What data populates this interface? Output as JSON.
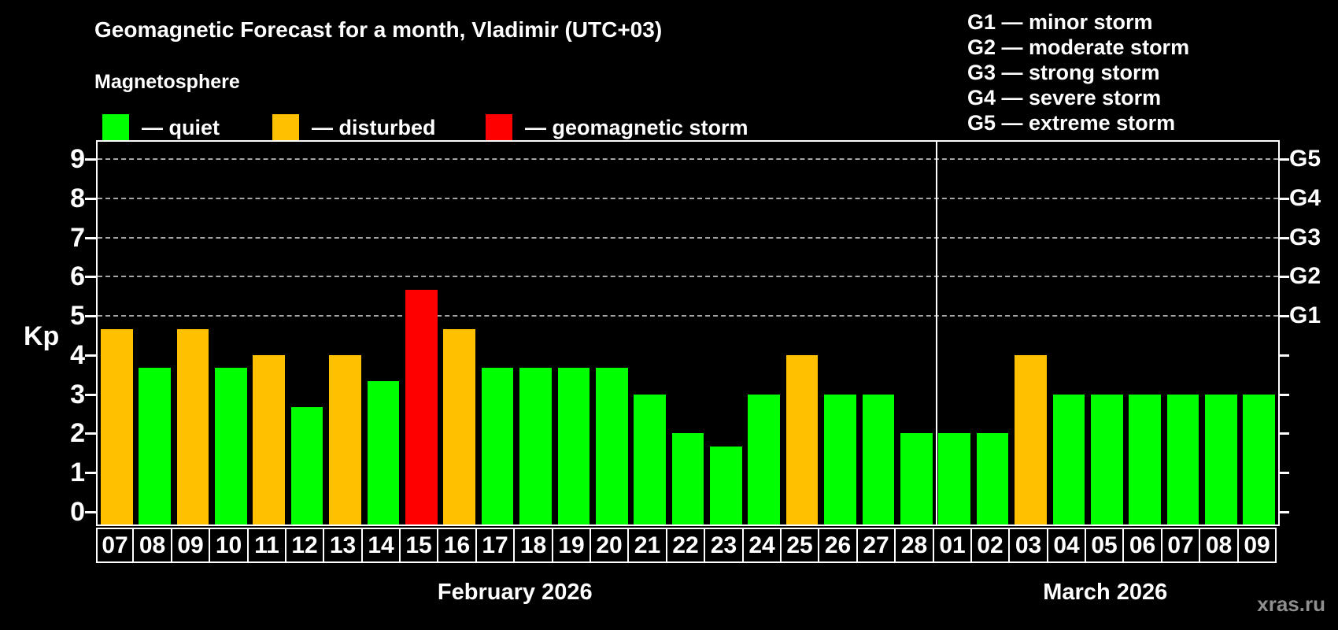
{
  "header": {
    "title": "Geomagnetic Forecast for a month, Vladimir (UTC+03)"
  },
  "magnetosphere_legend": {
    "title": "Magnetosphere",
    "items": [
      {
        "label": "— quiet",
        "status": "quiet",
        "color": "#00ff00"
      },
      {
        "label": "— disturbed",
        "status": "disturbed",
        "color": "#ffc000"
      },
      {
        "label": "— geomagnetic storm",
        "status": "storm",
        "color": "#ff0000"
      }
    ]
  },
  "storm_scale_legend": {
    "items": [
      "G1 — minor storm",
      "G2 — moderate storm",
      "G3 — strong storm",
      "G4 — severe storm",
      "G5 — extreme storm"
    ]
  },
  "watermark": "xras.ru",
  "chart_data": {
    "type": "bar",
    "title": "Geomagnetic Forecast for a month, Vladimir (UTC+03)",
    "ylabel": "Kp",
    "ylim": [
      0,
      9
    ],
    "yticks": [
      0,
      1,
      2,
      3,
      4,
      5,
      6,
      7,
      8,
      9
    ],
    "grid": "horizontal dashed lines at Kp 5–9 only",
    "gridlines_kp": [
      5,
      6,
      7,
      8,
      9
    ],
    "right_axis": [
      {
        "label": "G1",
        "kp": 5
      },
      {
        "label": "G2",
        "kp": 6
      },
      {
        "label": "G3",
        "kp": 7
      },
      {
        "label": "G4",
        "kp": 8
      },
      {
        "label": "G5",
        "kp": 9
      }
    ],
    "legend_position": "top",
    "months": [
      {
        "label": "February 2026",
        "start_index": 0,
        "days": 22
      },
      {
        "label": "March 2026",
        "start_index": 22,
        "days": 9
      }
    ],
    "categories": [
      "07",
      "08",
      "09",
      "10",
      "11",
      "12",
      "13",
      "14",
      "15",
      "16",
      "17",
      "18",
      "19",
      "20",
      "21",
      "22",
      "23",
      "24",
      "25",
      "26",
      "27",
      "28",
      "01",
      "02",
      "03",
      "04",
      "05",
      "06",
      "07",
      "08",
      "09"
    ],
    "series": [
      {
        "name": "Kp forecast",
        "values": [
          4.67,
          3.67,
          4.67,
          3.67,
          4,
          2.67,
          4,
          3.33,
          5.67,
          4.67,
          3.67,
          3.67,
          3.67,
          3.67,
          3,
          2,
          1.67,
          3,
          4,
          3,
          3,
          2,
          2,
          2,
          4,
          3,
          3,
          3,
          3,
          3,
          3
        ]
      }
    ],
    "statuses": [
      "disturbed",
      "quiet",
      "disturbed",
      "quiet",
      "disturbed",
      "quiet",
      "disturbed",
      "quiet",
      "storm",
      "disturbed",
      "quiet",
      "quiet",
      "quiet",
      "quiet",
      "quiet",
      "quiet",
      "quiet",
      "quiet",
      "disturbed",
      "quiet",
      "quiet",
      "quiet",
      "quiet",
      "quiet",
      "disturbed",
      "quiet",
      "quiet",
      "quiet",
      "quiet",
      "quiet",
      "quiet"
    ],
    "status_colors": {
      "quiet": "#00ff00",
      "disturbed": "#ffc000",
      "storm": "#ff0000"
    }
  }
}
